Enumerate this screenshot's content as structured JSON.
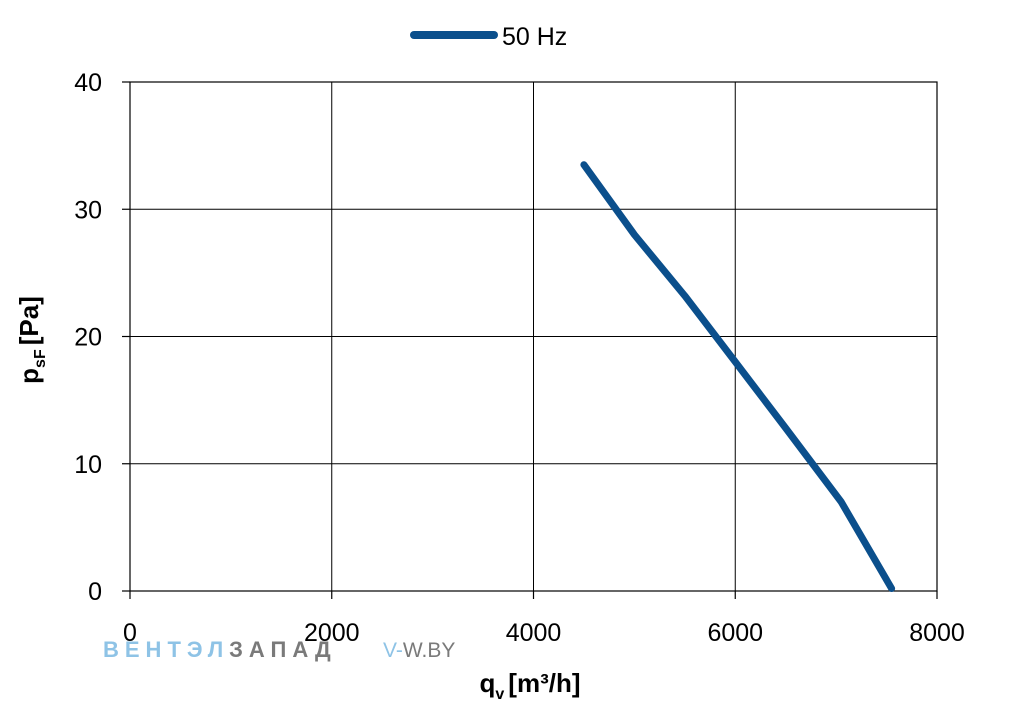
{
  "chart_data": {
    "type": "line",
    "title": "",
    "legend": {
      "placement": "top-center",
      "entries": [
        "50 Hz"
      ]
    },
    "xlabel": {
      "main": "q",
      "sub": "v",
      "unit": "[m³/h]"
    },
    "ylabel": {
      "main": "p",
      "sub": "sF",
      "unit": "[Pa]"
    },
    "xlim": [
      0,
      8000
    ],
    "ylim": [
      0,
      40
    ],
    "xticks": [
      0,
      2000,
      4000,
      6000,
      8000
    ],
    "yticks": [
      0,
      10,
      20,
      30,
      40
    ],
    "xtick_labels": [
      "0",
      "2000",
      "4000",
      "6000",
      "8000"
    ],
    "ytick_labels": [
      "0",
      "10",
      "20",
      "30",
      "40"
    ],
    "grid": true,
    "series": [
      {
        "name": "50 Hz",
        "color": "#0b4f8c",
        "points": [
          [
            4500,
            33.5
          ],
          [
            5000,
            28.0
          ],
          [
            5500,
            23.2
          ],
          [
            6000,
            18.0
          ],
          [
            6500,
            12.8
          ],
          [
            7050,
            7.0
          ],
          [
            7550,
            0.2
          ]
        ]
      }
    ]
  },
  "watermark": {
    "part1": "ВЕНТЭЛ",
    "part2": "ЗАПАД",
    "site_prefix": "V-",
    "site_rest": "W.BY",
    "color1": "#8ec3e6",
    "color2": "#7a7a7a"
  }
}
